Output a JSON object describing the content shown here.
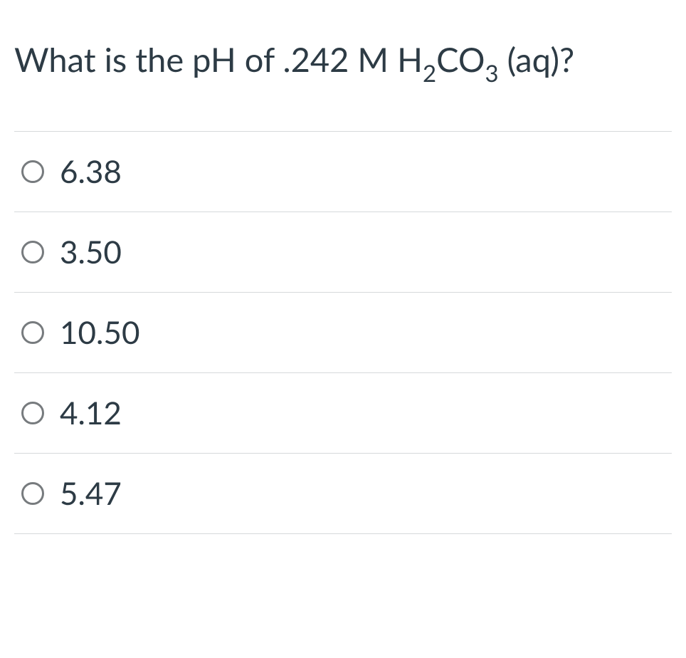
{
  "question": {
    "text_html": "What is the pH of .242 M H<sub>2</sub>CO<sub>3</sub> (aq)?",
    "text_plain": "What is the pH of .242 M H2CO3 (aq)?"
  },
  "options": [
    {
      "label": "6.38",
      "selected": false
    },
    {
      "label": "3.50",
      "selected": false
    },
    {
      "label": "10.50",
      "selected": false
    },
    {
      "label": "4.12",
      "selected": false
    },
    {
      "label": "5.47",
      "selected": false
    }
  ],
  "styling": {
    "text_color": "#2d3b45",
    "background_color": "#ffffff",
    "divider_color": "#d6d9db",
    "radio_border_color": "#777b7e",
    "question_fontsize": 47,
    "option_fontsize": 44,
    "radio_size": 32,
    "radio_border_width": 3
  }
}
